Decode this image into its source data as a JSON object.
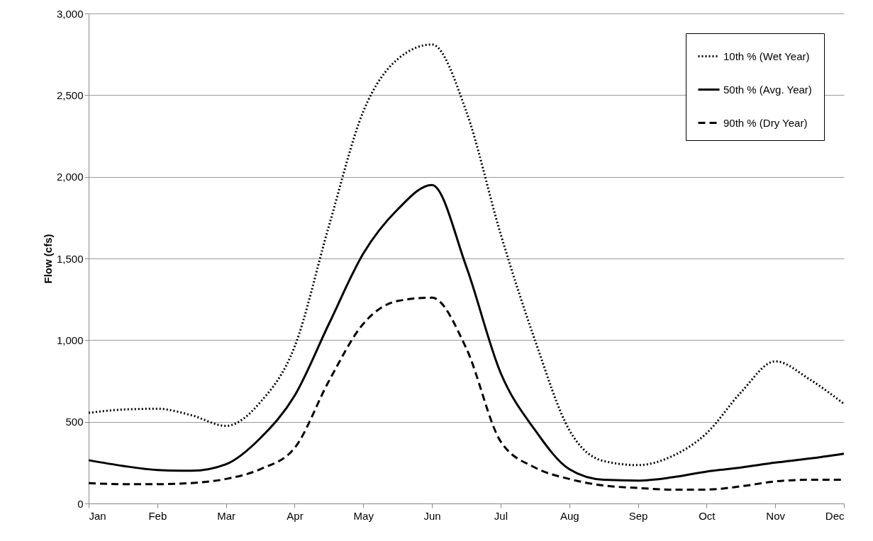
{
  "chart_data": {
    "type": "line",
    "ylabel": "Flow (cfs)",
    "categories": [
      "Jan",
      null,
      "Feb",
      null,
      "Mar",
      null,
      "Apr",
      null,
      "May",
      null,
      "Jun",
      null,
      "Jul",
      null,
      "Aug",
      null,
      "Sep",
      null,
      "Oct",
      null,
      "Nov",
      null,
      "Dec"
    ],
    "series": [
      {
        "name": "10th % (Wet Year)",
        "color": "#000000",
        "line_style": "dotted",
        "values": [
          555,
          575,
          580,
          540,
          475,
          620,
          960,
          1700,
          2400,
          2720,
          2810,
          2400,
          1650,
          1000,
          450,
          260,
          235,
          290,
          430,
          680,
          870,
          760,
          610
        ]
      },
      {
        "name": "50th % (Avg. Year)",
        "color": "#000000",
        "line_style": "solid",
        "values": [
          265,
          230,
          205,
          200,
          240,
          400,
          660,
          1100,
          1530,
          1800,
          1950,
          1450,
          800,
          450,
          210,
          145,
          140,
          160,
          195,
          220,
          250,
          275,
          305
        ]
      },
      {
        "name": "90th % (Dry Year)",
        "color": "#000000",
        "line_style": "dashed",
        "values": [
          125,
          118,
          118,
          125,
          150,
          210,
          340,
          750,
          1100,
          1240,
          1260,
          950,
          380,
          220,
          150,
          110,
          95,
          85,
          85,
          105,
          135,
          145,
          145
        ]
      }
    ],
    "ylim": [
      0,
      3000
    ],
    "yticks": [
      0,
      500,
      {
        "value": 1000,
        "label": "1,000"
      },
      {
        "value": 1500,
        "label": "1,500"
      },
      {
        "value": 2000,
        "label": "2,000"
      },
      {
        "value": 2500,
        "label": "2,500"
      },
      {
        "value": 3000,
        "label": "3,000"
      }
    ],
    "grid": "y",
    "legend": "top right"
  }
}
